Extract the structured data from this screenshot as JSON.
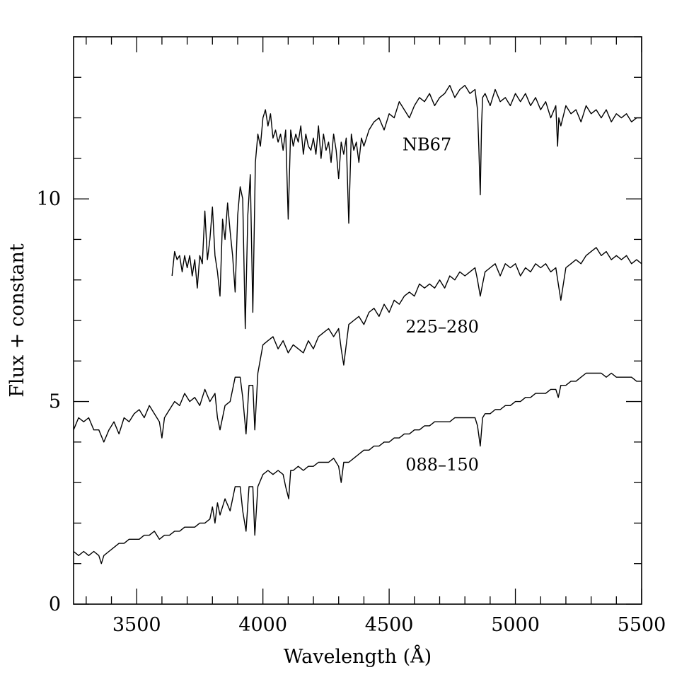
{
  "chart_data": {
    "type": "line",
    "title": "",
    "xlabel": "Wavelength (Å)",
    "ylabel": "Flux + constant",
    "xlim": [
      3250,
      5500
    ],
    "ylim": [
      0,
      14
    ],
    "grid": false,
    "legend": "none",
    "xticks": {
      "major": [
        3500,
        4000,
        4500,
        5000,
        5500
      ],
      "major_labels": [
        "3500",
        "4000",
        "4500",
        "5000",
        "5500"
      ],
      "minor_step": 100
    },
    "yticks": {
      "major": [
        0,
        5,
        10
      ],
      "major_labels": [
        "0",
        "5",
        "10"
      ],
      "minor_step": 1
    },
    "series": [
      {
        "name": "NB67",
        "label_at": [
          4650,
          11.2
        ],
        "x": [
          3640,
          3650,
          3660,
          3670,
          3680,
          3690,
          3700,
          3710,
          3720,
          3730,
          3740,
          3750,
          3760,
          3770,
          3780,
          3790,
          3800,
          3810,
          3820,
          3830,
          3840,
          3850,
          3860,
          3870,
          3880,
          3890,
          3900,
          3910,
          3920,
          3930,
          3940,
          3950,
          3960,
          3970,
          3980,
          3990,
          4000,
          4010,
          4020,
          4030,
          4040,
          4050,
          4060,
          4070,
          4080,
          4090,
          4100,
          4110,
          4120,
          4130,
          4140,
          4150,
          4160,
          4170,
          4180,
          4190,
          4200,
          4210,
          4220,
          4230,
          4240,
          4250,
          4260,
          4270,
          4280,
          4290,
          4300,
          4310,
          4320,
          4330,
          4340,
          4350,
          4360,
          4370,
          4380,
          4390,
          4400,
          4420,
          4440,
          4460,
          4480,
          4500,
          4520,
          4540,
          4560,
          4580,
          4600,
          4620,
          4640,
          4660,
          4680,
          4700,
          4720,
          4740,
          4760,
          4780,
          4800,
          4820,
          4840,
          4850,
          4855,
          4861,
          4866,
          4870,
          4880,
          4900,
          4920,
          4940,
          4960,
          4980,
          5000,
          5020,
          5040,
          5060,
          5080,
          5100,
          5120,
          5140,
          5160,
          5167,
          5172,
          5180,
          5200,
          5220,
          5240,
          5260,
          5280,
          5300,
          5320,
          5340,
          5360,
          5380,
          5400,
          5420,
          5440,
          5460,
          5480,
          5500
        ],
        "values": [
          8.1,
          8.7,
          8.5,
          8.6,
          8.2,
          8.6,
          8.3,
          8.6,
          8.1,
          8.5,
          7.8,
          8.6,
          8.4,
          9.7,
          8.5,
          9.0,
          9.8,
          8.6,
          8.2,
          7.6,
          9.5,
          9.0,
          9.9,
          9.2,
          8.6,
          7.7,
          9.6,
          10.3,
          10.0,
          6.8,
          9.6,
          10.6,
          7.2,
          10.9,
          11.6,
          11.3,
          12.0,
          12.2,
          11.8,
          12.1,
          11.5,
          11.7,
          11.4,
          11.6,
          11.2,
          11.7,
          9.5,
          11.7,
          11.3,
          11.6,
          11.4,
          11.8,
          11.1,
          11.6,
          11.3,
          11.2,
          11.5,
          11.1,
          11.8,
          11.0,
          11.6,
          11.2,
          11.4,
          10.9,
          11.6,
          11.2,
          10.5,
          11.4,
          11.1,
          11.5,
          9.4,
          11.6,
          11.2,
          11.4,
          10.9,
          11.5,
          11.3,
          11.7,
          11.9,
          12.0,
          11.7,
          12.1,
          12.0,
          12.4,
          12.2,
          12.0,
          12.3,
          12.5,
          12.4,
          12.6,
          12.3,
          12.5,
          12.6,
          12.8,
          12.5,
          12.7,
          12.8,
          12.6,
          12.7,
          12.2,
          11.3,
          10.1,
          11.8,
          12.5,
          12.6,
          12.3,
          12.7,
          12.4,
          12.5,
          12.3,
          12.6,
          12.4,
          12.6,
          12.3,
          12.5,
          12.2,
          12.4,
          12.0,
          12.3,
          11.3,
          12.0,
          11.8,
          12.3,
          12.1,
          12.2,
          11.9,
          12.3,
          12.1,
          12.2,
          12.0,
          12.2,
          11.9,
          12.1,
          12.0,
          12.1,
          11.9,
          12.0,
          12.0
        ]
      },
      {
        "name": "225–280",
        "label_at": [
          4710,
          6.7
        ],
        "x": [
          3250,
          3270,
          3290,
          3310,
          3330,
          3350,
          3370,
          3390,
          3410,
          3430,
          3450,
          3470,
          3490,
          3510,
          3530,
          3550,
          3570,
          3590,
          3600,
          3610,
          3630,
          3650,
          3670,
          3690,
          3710,
          3730,
          3750,
          3770,
          3790,
          3810,
          3820,
          3830,
          3850,
          3870,
          3890,
          3910,
          3920,
          3933,
          3945,
          3960,
          3968,
          3980,
          4000,
          4020,
          4040,
          4060,
          4080,
          4100,
          4120,
          4140,
          4160,
          4180,
          4200,
          4220,
          4240,
          4260,
          4280,
          4300,
          4310,
          4320,
          4340,
          4360,
          4380,
          4400,
          4420,
          4440,
          4460,
          4480,
          4500,
          4520,
          4540,
          4560,
          4580,
          4600,
          4620,
          4640,
          4660,
          4680,
          4700,
          4720,
          4740,
          4760,
          4780,
          4800,
          4820,
          4840,
          4850,
          4861,
          4870,
          4880,
          4900,
          4920,
          4940,
          4960,
          4980,
          5000,
          5020,
          5040,
          5060,
          5080,
          5100,
          5120,
          5140,
          5160,
          5170,
          5180,
          5200,
          5220,
          5240,
          5260,
          5280,
          5300,
          5320,
          5340,
          5360,
          5380,
          5400,
          5420,
          5440,
          5460,
          5480,
          5500
        ],
        "values": [
          4.3,
          4.6,
          4.5,
          4.6,
          4.3,
          4.3,
          4.0,
          4.3,
          4.5,
          4.2,
          4.6,
          4.5,
          4.7,
          4.8,
          4.6,
          4.9,
          4.7,
          4.5,
          4.1,
          4.6,
          4.8,
          5.0,
          4.9,
          5.2,
          5.0,
          5.1,
          4.9,
          5.3,
          5.0,
          5.2,
          4.6,
          4.3,
          4.9,
          5.0,
          5.6,
          5.6,
          5.1,
          4.2,
          5.4,
          5.4,
          4.3,
          5.7,
          6.4,
          6.5,
          6.6,
          6.3,
          6.5,
          6.2,
          6.4,
          6.3,
          6.2,
          6.5,
          6.3,
          6.6,
          6.7,
          6.8,
          6.6,
          6.8,
          6.3,
          5.9,
          6.9,
          7.0,
          7.1,
          6.9,
          7.2,
          7.3,
          7.1,
          7.4,
          7.2,
          7.5,
          7.4,
          7.6,
          7.7,
          7.6,
          7.9,
          7.8,
          7.9,
          7.8,
          8.0,
          7.8,
          8.1,
          8.0,
          8.2,
          8.1,
          8.2,
          8.3,
          8.0,
          7.6,
          7.9,
          8.2,
          8.3,
          8.4,
          8.1,
          8.4,
          8.3,
          8.4,
          8.1,
          8.3,
          8.2,
          8.4,
          8.3,
          8.4,
          8.2,
          8.3,
          7.9,
          7.5,
          8.3,
          8.4,
          8.5,
          8.4,
          8.6,
          8.7,
          8.8,
          8.6,
          8.7,
          8.5,
          8.6,
          8.5,
          8.6,
          8.4,
          8.5,
          8.4
        ]
      },
      {
        "name": "088–150",
        "label_at": [
          4710,
          3.3
        ],
        "x": [
          3250,
          3270,
          3290,
          3310,
          3330,
          3350,
          3360,
          3370,
          3390,
          3410,
          3430,
          3450,
          3470,
          3490,
          3510,
          3530,
          3550,
          3570,
          3590,
          3610,
          3630,
          3650,
          3670,
          3690,
          3710,
          3730,
          3750,
          3770,
          3790,
          3800,
          3810,
          3820,
          3830,
          3850,
          3870,
          3890,
          3910,
          3920,
          3933,
          3945,
          3960,
          3968,
          3980,
          4000,
          4020,
          4040,
          4060,
          4080,
          4090,
          4102,
          4110,
          4120,
          4140,
          4160,
          4180,
          4200,
          4220,
          4240,
          4260,
          4280,
          4300,
          4310,
          4320,
          4340,
          4360,
          4380,
          4400,
          4420,
          4440,
          4460,
          4480,
          4500,
          4520,
          4540,
          4560,
          4580,
          4600,
          4620,
          4640,
          4660,
          4680,
          4700,
          4720,
          4740,
          4760,
          4780,
          4800,
          4820,
          4840,
          4850,
          4861,
          4870,
          4880,
          4900,
          4920,
          4940,
          4960,
          4980,
          5000,
          5020,
          5040,
          5060,
          5080,
          5100,
          5120,
          5140,
          5160,
          5170,
          5180,
          5200,
          5220,
          5240,
          5260,
          5280,
          5300,
          5320,
          5340,
          5360,
          5380,
          5400,
          5420,
          5440,
          5460,
          5480,
          5500
        ],
        "values": [
          1.3,
          1.2,
          1.3,
          1.2,
          1.3,
          1.2,
          1.0,
          1.2,
          1.3,
          1.4,
          1.5,
          1.5,
          1.6,
          1.6,
          1.6,
          1.7,
          1.7,
          1.8,
          1.6,
          1.7,
          1.7,
          1.8,
          1.8,
          1.9,
          1.9,
          1.9,
          2.0,
          2.0,
          2.1,
          2.4,
          2.0,
          2.5,
          2.2,
          2.6,
          2.3,
          2.9,
          2.9,
          2.3,
          1.8,
          2.9,
          2.9,
          1.7,
          2.9,
          3.2,
          3.3,
          3.2,
          3.3,
          3.2,
          2.9,
          2.6,
          3.3,
          3.3,
          3.4,
          3.3,
          3.4,
          3.4,
          3.5,
          3.5,
          3.5,
          3.6,
          3.4,
          3.0,
          3.5,
          3.5,
          3.6,
          3.7,
          3.8,
          3.8,
          3.9,
          3.9,
          4.0,
          4.0,
          4.1,
          4.1,
          4.2,
          4.2,
          4.3,
          4.3,
          4.4,
          4.4,
          4.5,
          4.5,
          4.5,
          4.5,
          4.6,
          4.6,
          4.6,
          4.6,
          4.6,
          4.4,
          3.9,
          4.6,
          4.7,
          4.7,
          4.8,
          4.8,
          4.9,
          4.9,
          5.0,
          5.0,
          5.1,
          5.1,
          5.2,
          5.2,
          5.2,
          5.3,
          5.3,
          5.1,
          5.4,
          5.4,
          5.5,
          5.5,
          5.6,
          5.7,
          5.7,
          5.7,
          5.7,
          5.6,
          5.7,
          5.6,
          5.6,
          5.6,
          5.6,
          5.5,
          5.5
        ]
      }
    ]
  }
}
